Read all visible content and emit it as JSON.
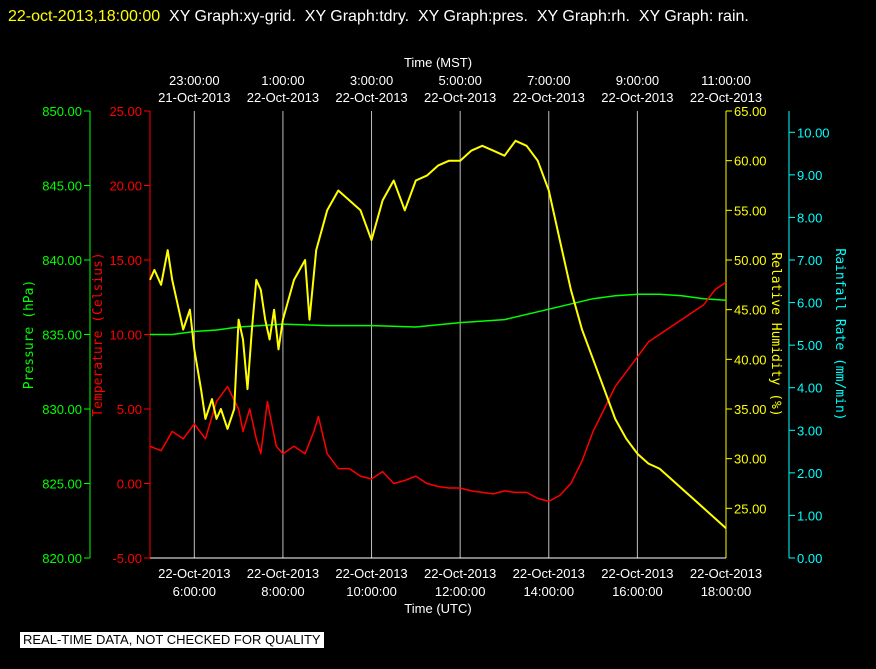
{
  "header": {
    "timestamp": "22-oct-2013,18:00:00",
    "title_rest": "  XY Graph:xy-grid.  XY Graph:tdry.  XY Graph:pres.  XY Graph:rh.  XY Graph: rain."
  },
  "footer": {
    "qc_note": "REAL-TIME DATA, NOT CHECKED FOR QUALITY"
  },
  "colors": {
    "pressure": "#00ff00",
    "temperature": "#ff0000",
    "humidity": "#ffff00",
    "rain": "#00ffff",
    "grid": "#ffffff"
  },
  "chart_data": {
    "type": "line",
    "title": "",
    "grid": true,
    "x_axis_bottom": {
      "label": "Time (UTC)",
      "ticks": [
        {
          "time": "6:00:00",
          "date": "22-Oct-2013"
        },
        {
          "time": "8:00:00",
          "date": "22-Oct-2013"
        },
        {
          "time": "10:00:00",
          "date": "22-Oct-2013"
        },
        {
          "time": "12:00:00",
          "date": "22-Oct-2013"
        },
        {
          "time": "14:00:00",
          "date": "22-Oct-2013"
        },
        {
          "time": "16:00:00",
          "date": "22-Oct-2013"
        },
        {
          "time": "18:00:00",
          "date": "22-Oct-2013"
        }
      ]
    },
    "x_axis_top": {
      "label": "Time (MST)",
      "ticks": [
        {
          "time": "23:00:00",
          "date": "21-Oct-2013"
        },
        {
          "time": "1:00:00",
          "date": "22-Oct-2013"
        },
        {
          "time": "3:00:00",
          "date": "22-Oct-2013"
        },
        {
          "time": "5:00:00",
          "date": "22-Oct-2013"
        },
        {
          "time": "7:00:00",
          "date": "22-Oct-2013"
        },
        {
          "time": "9:00:00",
          "date": "22-Oct-2013"
        },
        {
          "time": "11:00:00",
          "date": "22-Oct-2013"
        }
      ]
    },
    "xlim_hours_utc": [
      5.0,
      18.0
    ],
    "y_axes": {
      "pressure": {
        "label": "Pressure (hPa)",
        "ylim": [
          820,
          850
        ],
        "ticks": [
          "820.00",
          "825.00",
          "830.00",
          "835.00",
          "840.00",
          "845.00",
          "850.00"
        ]
      },
      "temperature": {
        "label": "Temperature (Celsius)",
        "ylim": [
          -5,
          25
        ],
        "ticks": [
          "-5.00",
          "0.00",
          "5.00",
          "10.00",
          "15.00",
          "20.00",
          "25.00"
        ]
      },
      "humidity": {
        "label": "Relative Humidity (%)",
        "ylim": [
          20,
          65
        ],
        "ticks": [
          "25.00",
          "30.00",
          "35.00",
          "40.00",
          "45.00",
          "50.00",
          "55.00",
          "60.00",
          "65.00"
        ]
      },
      "rain": {
        "label": "Rainfall Rate (mm/min)",
        "ylim": [
          0,
          10.5
        ],
        "ticks": [
          "0.00",
          "1.00",
          "2.00",
          "3.00",
          "4.00",
          "5.00",
          "6.00",
          "7.00",
          "8.00",
          "9.00",
          "10.00"
        ]
      }
    },
    "series": [
      {
        "name": "pressure",
        "axis": "pressure",
        "x": [
          5.0,
          5.5,
          6.0,
          6.5,
          7.0,
          7.5,
          8.0,
          9.0,
          10.0,
          11.0,
          12.0,
          13.0,
          14.0,
          15.0,
          15.5,
          16.0,
          16.5,
          17.0,
          17.5,
          18.0
        ],
        "y": [
          835.0,
          835.0,
          835.2,
          835.3,
          835.5,
          835.6,
          835.7,
          835.6,
          835.6,
          835.5,
          835.8,
          836.0,
          836.7,
          837.4,
          837.6,
          837.7,
          837.7,
          837.6,
          837.4,
          837.3
        ]
      },
      {
        "name": "temperature",
        "axis": "temperature",
        "x": [
          5.0,
          5.25,
          5.5,
          5.75,
          6.0,
          6.25,
          6.5,
          6.75,
          7.0,
          7.1,
          7.25,
          7.4,
          7.5,
          7.65,
          7.75,
          7.85,
          8.0,
          8.25,
          8.5,
          8.7,
          8.8,
          9.0,
          9.25,
          9.5,
          9.75,
          10.0,
          10.25,
          10.5,
          10.75,
          11.0,
          11.25,
          11.5,
          11.75,
          12.0,
          12.25,
          12.5,
          12.75,
          13.0,
          13.25,
          13.5,
          13.75,
          14.0,
          14.25,
          14.5,
          14.75,
          15.0,
          15.25,
          15.5,
          15.75,
          16.0,
          16.25,
          16.5,
          16.75,
          17.0,
          17.25,
          17.5,
          17.75,
          18.0
        ],
        "y": [
          2.5,
          2.2,
          3.5,
          3.0,
          4.0,
          3.0,
          5.5,
          6.5,
          5.0,
          3.5,
          5.0,
          3.0,
          2.0,
          5.5,
          4.0,
          2.5,
          2.0,
          2.5,
          2.0,
          3.5,
          4.5,
          2.0,
          1.0,
          1.0,
          0.5,
          0.3,
          0.8,
          0.0,
          0.2,
          0.5,
          0.0,
          -0.2,
          -0.3,
          -0.3,
          -0.5,
          -0.6,
          -0.7,
          -0.5,
          -0.6,
          -0.6,
          -1.0,
          -1.2,
          -0.8,
          0.0,
          1.5,
          3.5,
          5.0,
          6.5,
          7.5,
          8.5,
          9.5,
          10.0,
          10.5,
          11.0,
          11.5,
          12.0,
          13.0,
          13.5
        ]
      },
      {
        "name": "humidity",
        "axis": "humidity",
        "x": [
          5.0,
          5.1,
          5.25,
          5.4,
          5.5,
          5.6,
          5.75,
          5.9,
          6.0,
          6.15,
          6.25,
          6.4,
          6.5,
          6.6,
          6.75,
          6.9,
          7.0,
          7.1,
          7.2,
          7.3,
          7.4,
          7.5,
          7.6,
          7.7,
          7.8,
          7.9,
          8.0,
          8.25,
          8.5,
          8.6,
          8.75,
          9.0,
          9.25,
          9.5,
          9.75,
          10.0,
          10.25,
          10.5,
          10.75,
          11.0,
          11.25,
          11.5,
          11.75,
          12.0,
          12.25,
          12.5,
          12.75,
          13.0,
          13.25,
          13.5,
          13.75,
          14.0,
          14.25,
          14.5,
          14.75,
          15.0,
          15.25,
          15.5,
          15.75,
          16.0,
          16.25,
          16.5,
          16.75,
          17.0,
          17.25,
          17.5,
          17.75,
          18.0
        ],
        "y": [
          48.0,
          49.0,
          47.5,
          51.0,
          48.0,
          46.0,
          43.0,
          45.0,
          41.0,
          37.0,
          34.0,
          36.0,
          34.0,
          35.0,
          33.0,
          35.0,
          44.0,
          42.0,
          37.0,
          43.0,
          48.0,
          47.0,
          44.0,
          42.0,
          45.0,
          41.0,
          44.0,
          48.0,
          50.0,
          44.0,
          51.0,
          55.0,
          57.0,
          56.0,
          55.0,
          52.0,
          56.0,
          58.0,
          55.0,
          58.0,
          58.5,
          59.5,
          60.0,
          60.0,
          61.0,
          61.5,
          61.0,
          60.5,
          62.0,
          61.5,
          60.0,
          57.0,
          52.0,
          47.0,
          43.0,
          40.0,
          37.0,
          34.0,
          32.0,
          30.5,
          29.5,
          29.0,
          28.0,
          27.0,
          26.0,
          25.0,
          24.0,
          23.0
        ]
      },
      {
        "name": "rain",
        "axis": "rain",
        "x": [],
        "y": []
      }
    ]
  }
}
